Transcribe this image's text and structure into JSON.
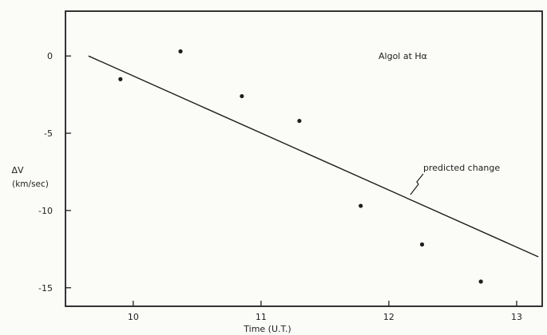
{
  "chart_data": {
    "type": "scatter",
    "title": "Algol at Hα",
    "xlabel": "Time  (U.T.)",
    "ylabel_line1": "ΔV",
    "ylabel_line2": "(km/sec)",
    "xlim": [
      9.47,
      13.2
    ],
    "ylim": [
      -16.2,
      2.9
    ],
    "x_ticks": [
      10,
      11,
      12,
      13
    ],
    "y_ticks": [
      0,
      -5,
      -10,
      -15
    ],
    "x_tick_labels": [
      "10",
      "11",
      "12",
      "13"
    ],
    "y_tick_labels": [
      "0",
      "-5",
      "-10",
      "-15"
    ],
    "series": [
      {
        "x": [
          9.9,
          10.37,
          10.85,
          11.3,
          11.78,
          12.26,
          12.72
        ],
        "y": [
          -1.5,
          0.3,
          -2.6,
          -4.2,
          -9.7,
          -12.2,
          -14.6
        ]
      }
    ],
    "line": {
      "x": [
        9.65,
        13.17
      ],
      "y": [
        0,
        -13.0
      ]
    },
    "annotation": "predicted change",
    "grid": false,
    "legend": "none"
  }
}
